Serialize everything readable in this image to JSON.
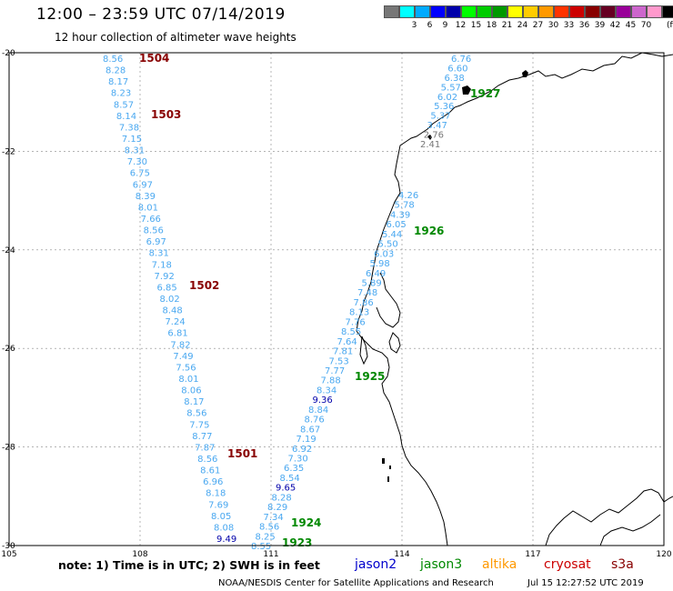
{
  "title": "12:00 – 23:59 UTC 07/14/2019",
  "subtitle": "12 hour collection of altimeter wave heights",
  "legend": {
    "colors": [
      "#777777",
      "#00ffff",
      "#00aaff",
      "#0000ff",
      "#0000aa",
      "#00ff00",
      "#00cc00",
      "#009900",
      "#ffff00",
      "#ffcc00",
      "#ff9900",
      "#ff3300",
      "#cc0000",
      "#880000",
      "#660022",
      "#990099",
      "#cc66cc",
      "#ff99cc",
      "#000000"
    ],
    "labels": [
      "3",
      "6",
      "9",
      "12",
      "15",
      "18",
      "21",
      "24",
      "27",
      "30",
      "33",
      "36",
      "39",
      "42",
      "45",
      "70"
    ],
    "unit": "(ft)"
  },
  "axes": {
    "lon_ticks": [
      "105",
      "108",
      "111",
      "114",
      "117",
      "120"
    ],
    "lat_ticks": [
      "-20",
      "-22",
      "-24",
      "-26",
      "-28",
      "-30"
    ]
  },
  "tracks": [
    {
      "id": "t1504",
      "label": "1504",
      "label_color": "#880000",
      "points": [
        {
          "v": "8.56",
          "c": "#4aa8f0"
        },
        {
          "v": "8.28",
          "c": "#4aa8f0"
        },
        {
          "v": "8.17",
          "c": "#4aa8f0"
        },
        {
          "v": "8.23",
          "c": "#4aa8f0"
        },
        {
          "v": "8.57",
          "c": "#4aa8f0"
        },
        {
          "v": "8.14",
          "c": "#4aa8f0"
        },
        {
          "v": "7.38",
          "c": "#4aa8f0"
        },
        {
          "v": "7.15",
          "c": "#4aa8f0"
        },
        {
          "v": "8.31",
          "c": "#4aa8f0"
        },
        {
          "v": "7.30",
          "c": "#4aa8f0"
        },
        {
          "v": "6.75",
          "c": "#4aa8f0"
        },
        {
          "v": "6.97",
          "c": "#4aa8f0"
        },
        {
          "v": "8.39",
          "c": "#4aa8f0"
        },
        {
          "v": "8.01",
          "c": "#4aa8f0"
        },
        {
          "v": "7.66",
          "c": "#4aa8f0"
        },
        {
          "v": "8.56",
          "c": "#4aa8f0"
        },
        {
          "v": "6.97",
          "c": "#4aa8f0"
        },
        {
          "v": "8.31",
          "c": "#4aa8f0"
        },
        {
          "v": "7.18",
          "c": "#4aa8f0"
        },
        {
          "v": "7.92",
          "c": "#4aa8f0"
        },
        {
          "v": "6.85",
          "c": "#4aa8f0"
        },
        {
          "v": "8.02",
          "c": "#4aa8f0"
        },
        {
          "v": "8.48",
          "c": "#4aa8f0"
        },
        {
          "v": "7.24",
          "c": "#4aa8f0"
        },
        {
          "v": "6.81",
          "c": "#4aa8f0"
        },
        {
          "v": "7.82",
          "c": "#4aa8f0"
        },
        {
          "v": "7.49",
          "c": "#4aa8f0"
        },
        {
          "v": "7.56",
          "c": "#4aa8f0"
        },
        {
          "v": "8.01",
          "c": "#4aa8f0"
        },
        {
          "v": "8.06",
          "c": "#4aa8f0"
        },
        {
          "v": "8.17",
          "c": "#4aa8f0"
        },
        {
          "v": "8.56",
          "c": "#4aa8f0"
        },
        {
          "v": "7.75",
          "c": "#4aa8f0"
        },
        {
          "v": "8.77",
          "c": "#4aa8f0"
        },
        {
          "v": "7.87",
          "c": "#4aa8f0"
        },
        {
          "v": "8.56",
          "c": "#4aa8f0"
        },
        {
          "v": "8.61",
          "c": "#4aa8f0"
        },
        {
          "v": "6.96",
          "c": "#4aa8f0"
        },
        {
          "v": "8.18",
          "c": "#4aa8f0"
        },
        {
          "v": "7.69",
          "c": "#4aa8f0"
        },
        {
          "v": "8.05",
          "c": "#4aa8f0"
        },
        {
          "v": "8.08",
          "c": "#4aa8f0"
        },
        {
          "v": "9.49",
          "c": "#0000aa"
        }
      ]
    },
    {
      "id": "t1927",
      "label": "1927",
      "label_color": "#008800",
      "points": [
        {
          "v": "6.76",
          "c": "#4aa8f0"
        },
        {
          "v": "6.60",
          "c": "#4aa8f0"
        },
        {
          "v": "6.38",
          "c": "#4aa8f0"
        },
        {
          "v": "5.57",
          "c": "#4aa8f0"
        },
        {
          "v": "6.02",
          "c": "#4aa8f0"
        },
        {
          "v": "5.36",
          "c": "#4aa8f0"
        },
        {
          "v": "5.37",
          "c": "#4aa8f0"
        },
        {
          "v": "3.47",
          "c": "#4aa8f0"
        },
        {
          "v": "2.76",
          "c": "#777777"
        },
        {
          "v": "2.41",
          "c": "#777777"
        }
      ]
    },
    {
      "id": "t1926",
      "label": "1926",
      "label_color": "#008800",
      "points": [
        {
          "v": "4.26",
          "c": "#4aa8f0"
        },
        {
          "v": "5.78",
          "c": "#4aa8f0"
        },
        {
          "v": "4.39",
          "c": "#4aa8f0"
        },
        {
          "v": "6.05",
          "c": "#4aa8f0"
        },
        {
          "v": "5.44",
          "c": "#4aa8f0"
        },
        {
          "v": "5.50",
          "c": "#4aa8f0"
        },
        {
          "v": "6.03",
          "c": "#4aa8f0"
        },
        {
          "v": "5.98",
          "c": "#4aa8f0"
        },
        {
          "v": "6.49",
          "c": "#4aa8f0"
        },
        {
          "v": "5.89",
          "c": "#4aa8f0"
        },
        {
          "v": "7.48",
          "c": "#4aa8f0"
        },
        {
          "v": "7.86",
          "c": "#4aa8f0"
        },
        {
          "v": "8.13",
          "c": "#4aa8f0"
        },
        {
          "v": "7.76",
          "c": "#4aa8f0"
        },
        {
          "v": "8.55",
          "c": "#4aa8f0"
        },
        {
          "v": "7.64",
          "c": "#4aa8f0"
        },
        {
          "v": "7.81",
          "c": "#4aa8f0"
        },
        {
          "v": "7.53",
          "c": "#4aa8f0"
        },
        {
          "v": "7.77",
          "c": "#4aa8f0"
        },
        {
          "v": "7.88",
          "c": "#4aa8f0"
        },
        {
          "v": "8.34",
          "c": "#4aa8f0"
        },
        {
          "v": "9.36",
          "c": "#0000aa"
        },
        {
          "v": "8.84",
          "c": "#4aa8f0"
        },
        {
          "v": "8.76",
          "c": "#4aa8f0"
        },
        {
          "v": "8.67",
          "c": "#4aa8f0"
        },
        {
          "v": "7.19",
          "c": "#4aa8f0"
        },
        {
          "v": "6.92",
          "c": "#4aa8f0"
        },
        {
          "v": "7.30",
          "c": "#4aa8f0"
        },
        {
          "v": "6.35",
          "c": "#4aa8f0"
        },
        {
          "v": "8.54",
          "c": "#4aa8f0"
        },
        {
          "v": "9.65",
          "c": "#0000aa"
        },
        {
          "v": "8.28",
          "c": "#4aa8f0"
        },
        {
          "v": "8.29",
          "c": "#4aa8f0"
        },
        {
          "v": "7.34",
          "c": "#4aa8f0"
        },
        {
          "v": "8.56",
          "c": "#4aa8f0"
        },
        {
          "v": "8.25",
          "c": "#4aa8f0"
        },
        {
          "v": "8.55",
          "c": "#4aa8f0"
        }
      ]
    }
  ],
  "pass_labels": [
    {
      "text": "1503",
      "color": "#880000"
    },
    {
      "text": "1502",
      "color": "#880000"
    },
    {
      "text": "1501",
      "color": "#880000"
    },
    {
      "text": "1925",
      "color": "#008800"
    },
    {
      "text": "1924",
      "color": "#008800"
    },
    {
      "text": "1923",
      "color": "#008800"
    }
  ],
  "note": "note:  1) Time is in UTC;  2) SWH is in feet",
  "satellites": [
    {
      "name": "jason2",
      "color": "#0000cc"
    },
    {
      "name": "jason3",
      "color": "#008800"
    },
    {
      "name": "altika",
      "color": "#ff9900"
    },
    {
      "name": "cryosat",
      "color": "#cc0000"
    },
    {
      "name": "s3a",
      "color": "#880000"
    }
  ],
  "credit": "NOAA/NESDIS Center for Satellite Applications and Research",
  "timestamp": "Jul 15 12:27:52 UTC 2019"
}
